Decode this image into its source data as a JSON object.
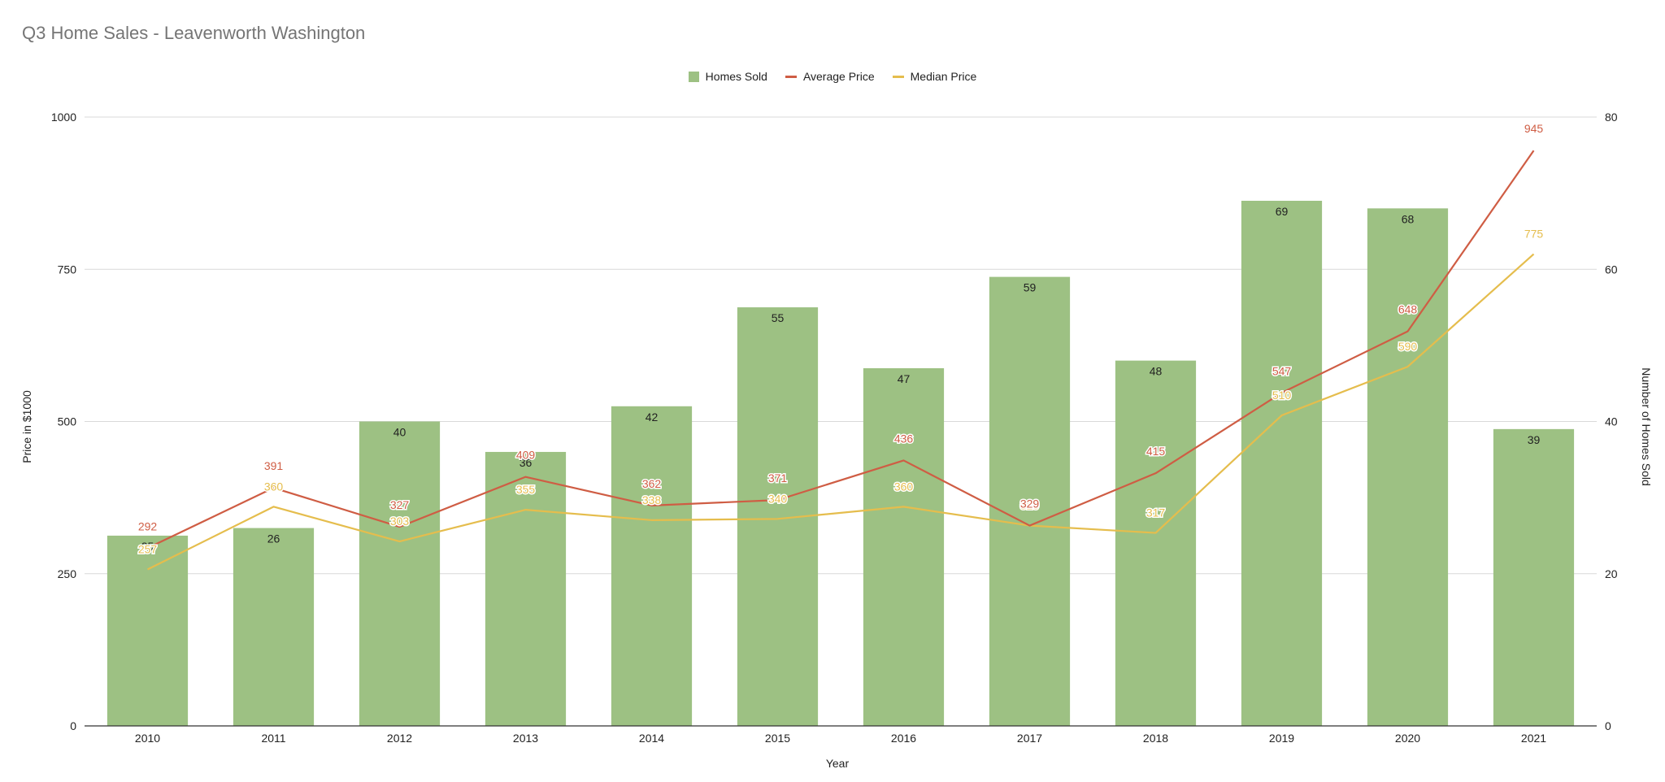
{
  "chart_data": {
    "type": "bar",
    "title": "Q3 Home Sales - Leavenworth Washington",
    "xlabel": "Year",
    "ylabel_left": "Price in $1000",
    "ylabel_right": "Number of Homes Sold",
    "categories": [
      "2010",
      "2011",
      "2012",
      "2013",
      "2014",
      "2015",
      "2016",
      "2017",
      "2018",
      "2019",
      "2020",
      "2021"
    ],
    "left_axis": {
      "min": 0,
      "max": 1000,
      "ticks": [
        0,
        250,
        500,
        750,
        1000
      ]
    },
    "right_axis": {
      "min": 0,
      "max": 80,
      "ticks": [
        0,
        20,
        40,
        60,
        80
      ]
    },
    "grid": true,
    "legend_position": "top-center",
    "series": [
      {
        "name": "Homes Sold",
        "kind": "bar",
        "axis": "right",
        "color": "#9dc183",
        "values": [
          25,
          26,
          40,
          36,
          42,
          55,
          47,
          59,
          48,
          69,
          68,
          39
        ]
      },
      {
        "name": "Average Price",
        "kind": "line",
        "axis": "left",
        "color": "#cf5d44",
        "values": [
          292,
          391,
          327,
          409,
          362,
          371,
          436,
          329,
          415,
          547,
          648,
          945
        ]
      },
      {
        "name": "Median Price",
        "kind": "line",
        "axis": "left",
        "color": "#e5bd4d",
        "values": [
          257,
          360,
          303,
          355,
          338,
          340,
          360,
          329,
          317,
          510,
          590,
          775
        ]
      }
    ]
  }
}
